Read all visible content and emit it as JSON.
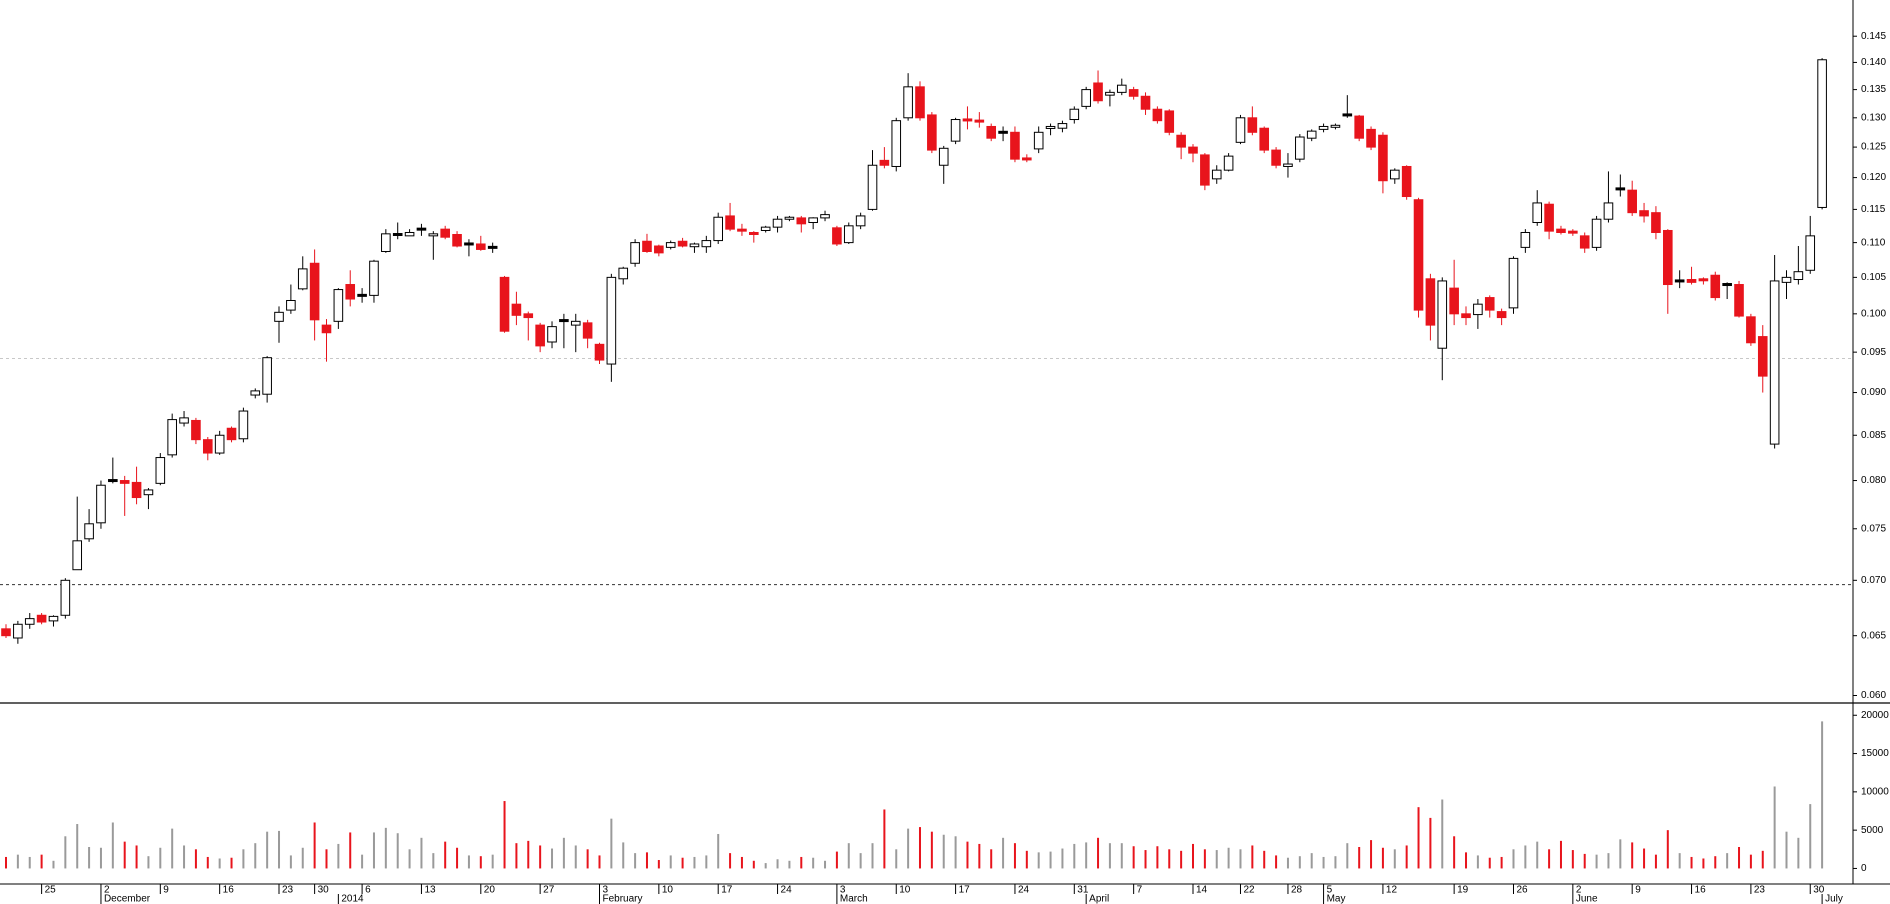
{
  "chart_data": {
    "type": "candlestick",
    "log_scale": true,
    "ylim": [
      0.0594,
      0.1522
    ],
    "yticks": [
      {
        "value": 0.06,
        "label": "0.060"
      },
      0.065,
      {
        "value": 0.07,
        "label": "0.070"
      },
      0.075,
      {
        "value": 0.08,
        "label": "0.080"
      },
      0.085,
      {
        "value": 0.09,
        "label": "0.090"
      },
      0.095,
      {
        "value": 0.1,
        "label": "0.100"
      },
      0.105,
      {
        "value": 0.11,
        "label": "0.110"
      },
      0.115,
      {
        "value": 0.12,
        "label": "0.120"
      },
      0.125,
      {
        "value": 0.13,
        "label": "0.130"
      },
      0.135,
      {
        "value": 0.14,
        "label": "0.140"
      },
      0.145
    ],
    "volume_ylim": [
      -1900,
      21600
    ],
    "volume_yticks": [
      0,
      5000,
      10000,
      15000,
      20000
    ],
    "colors": {
      "up": "#ffffff",
      "down": "#e8141c",
      "flat": "#000000",
      "volume_up": "#9a9a9a"
    },
    "reference_lines": [
      {
        "value": 0.0696,
        "color": "#333333"
      },
      {
        "value": 0.0942,
        "color": "#c8c8c8"
      }
    ],
    "categories": [
      null,
      null,
      null,
      "25",
      null,
      null,
      null,
      null,
      "2",
      null,
      null,
      null,
      null,
      "9",
      null,
      null,
      null,
      null,
      "16",
      null,
      null,
      null,
      null,
      "23",
      null,
      null,
      "30",
      null,
      null,
      null,
      "6",
      null,
      null,
      null,
      null,
      "13",
      null,
      null,
      null,
      null,
      "20",
      null,
      null,
      null,
      null,
      "27",
      null,
      null,
      null,
      null,
      "3",
      null,
      null,
      null,
      null,
      "10",
      null,
      null,
      null,
      null,
      "17",
      null,
      null,
      null,
      null,
      "24",
      null,
      null,
      null,
      null,
      "3",
      null,
      null,
      null,
      null,
      "10",
      null,
      null,
      null,
      null,
      "17",
      null,
      null,
      null,
      null,
      "24",
      null,
      null,
      null,
      null,
      "31",
      null,
      null,
      null,
      null,
      "7",
      null,
      null,
      null,
      null,
      "14",
      null,
      null,
      null,
      "22",
      null,
      null,
      null,
      "28",
      null,
      null,
      "5",
      null,
      null,
      null,
      null,
      "12",
      null,
      null,
      null,
      null,
      null,
      "19",
      null,
      null,
      null,
      null,
      "26",
      null,
      null,
      null,
      null,
      "2",
      null,
      null,
      null,
      null,
      "9",
      null,
      null,
      null,
      null,
      "16",
      null,
      null,
      null,
      null,
      "23",
      null,
      null,
      null,
      null,
      "30",
      null
    ],
    "month_labels": [
      null,
      null,
      null,
      null,
      null,
      null,
      null,
      null,
      "December",
      null,
      null,
      null,
      null,
      null,
      null,
      null,
      null,
      null,
      null,
      null,
      null,
      null,
      null,
      null,
      null,
      null,
      null,
      null,
      "2014",
      null,
      null,
      null,
      null,
      null,
      null,
      null,
      null,
      null,
      null,
      null,
      null,
      null,
      null,
      null,
      null,
      null,
      null,
      null,
      null,
      null,
      "February",
      null,
      null,
      null,
      null,
      null,
      null,
      null,
      null,
      null,
      null,
      null,
      null,
      null,
      null,
      null,
      null,
      null,
      null,
      null,
      "March",
      null,
      null,
      null,
      null,
      null,
      null,
      null,
      null,
      null,
      null,
      null,
      null,
      null,
      null,
      null,
      null,
      null,
      null,
      null,
      null,
      "April",
      null,
      null,
      null,
      null,
      null,
      null,
      null,
      null,
      null,
      null,
      null,
      null,
      null,
      null,
      null,
      null,
      null,
      null,
      null,
      "May",
      null,
      null,
      null,
      null,
      null,
      null,
      null,
      null,
      null,
      null,
      null,
      null,
      null,
      null,
      null,
      null,
      null,
      null,
      null,
      null,
      "June",
      null,
      null,
      null,
      null,
      null,
      null,
      null,
      null,
      null,
      null,
      null,
      null,
      null,
      null,
      null,
      null,
      null,
      null,
      null,
      null,
      "July"
    ],
    "open": [
      0.0656,
      0.0648,
      0.066,
      0.0668,
      0.0663,
      0.0668,
      0.071,
      0.074,
      0.0756,
      0.08,
      0.08,
      0.0798,
      0.0785,
      0.0797,
      0.0828,
      0.0864,
      0.0867,
      0.0845,
      0.083,
      0.0858,
      0.0846,
      0.0897,
      0.0898,
      0.099,
      0.1005,
      0.1034,
      0.107,
      0.0985,
      0.099,
      0.104,
      0.1025,
      0.1025,
      0.1087,
      0.1112,
      0.111,
      0.112,
      0.111,
      0.112,
      0.1112,
      0.1098,
      0.1098,
      0.1093,
      0.105,
      0.1013,
      0.1,
      0.0985,
      0.0963,
      0.0991,
      0.0985,
      0.0988,
      0.096,
      0.0935,
      0.1048,
      0.107,
      0.1102,
      0.1095,
      0.1093,
      0.1102,
      0.1094,
      0.1094,
      0.1103,
      0.114,
      0.112,
      0.1115,
      0.1118,
      0.1123,
      0.1135,
      0.1137,
      0.113,
      0.1137,
      0.1122,
      0.11,
      0.1125,
      0.115,
      0.1228,
      0.1218,
      0.13,
      0.1355,
      0.1305,
      0.122,
      0.126,
      0.1298,
      0.1296,
      0.1285,
      0.1275,
      0.1275,
      0.1232,
      0.1247,
      0.1282,
      0.1282,
      0.1297,
      0.132,
      0.1362,
      0.134,
      0.1345,
      0.135,
      0.1338,
      0.1315,
      0.1312,
      0.127,
      0.125,
      0.1237,
      0.1198,
      0.1212,
      0.1258,
      0.13,
      0.1282,
      0.1245,
      0.1218,
      0.123,
      0.1265,
      0.128,
      0.1285,
      0.1305,
      0.1303,
      0.128,
      0.127,
      0.1198,
      0.1218,
      0.1165,
      0.1048,
      0.0955,
      0.1035,
      0.1,
      0.0999,
      0.1022,
      0.1003,
      0.1008,
      0.1093,
      0.113,
      0.1158,
      0.112,
      0.1117,
      0.111,
      0.1093,
      0.1135,
      0.1182,
      0.118,
      0.1148,
      0.1145,
      0.1118,
      0.1045,
      0.1047,
      0.1048,
      0.1053,
      0.104,
      0.104,
      0.0996,
      0.097,
      0.084,
      0.1043,
      0.1047,
      0.106,
      0.1153
    ],
    "high": [
      0.066,
      0.0663,
      0.067,
      0.067,
      0.0668,
      0.0702,
      0.0783,
      0.077,
      0.08,
      0.0825,
      0.0805,
      0.0815,
      0.0792,
      0.083,
      0.0875,
      0.0878,
      0.087,
      0.0848,
      0.0855,
      0.086,
      0.0882,
      0.0905,
      0.0945,
      0.101,
      0.104,
      0.108,
      0.109,
      0.0993,
      0.1035,
      0.106,
      0.1035,
      0.1075,
      0.112,
      0.113,
      0.112,
      0.1128,
      0.1117,
      0.1125,
      0.1117,
      0.1105,
      0.111,
      0.11,
      0.1052,
      0.103,
      0.1003,
      0.0988,
      0.099,
      0.1,
      0.1,
      0.0992,
      0.0962,
      0.1055,
      0.1065,
      0.1105,
      0.1113,
      0.1097,
      0.1103,
      0.1107,
      0.11,
      0.111,
      0.1145,
      0.116,
      0.1128,
      0.1117,
      0.1125,
      0.114,
      0.114,
      0.114,
      0.1138,
      0.1148,
      0.1125,
      0.113,
      0.1145,
      0.1245,
      0.125,
      0.13,
      0.138,
      0.1365,
      0.131,
      0.1252,
      0.13,
      0.132,
      0.131,
      0.129,
      0.1285,
      0.1285,
      0.1238,
      0.1285,
      0.129,
      0.1295,
      0.132,
      0.1355,
      0.1385,
      0.135,
      0.137,
      0.1355,
      0.1345,
      0.132,
      0.1315,
      0.1275,
      0.1255,
      0.124,
      0.122,
      0.124,
      0.1305,
      0.132,
      0.1285,
      0.125,
      0.124,
      0.1272,
      0.128,
      0.129,
      0.129,
      0.134,
      0.1305,
      0.1285,
      0.1275,
      0.1215,
      0.122,
      0.1168,
      0.1055,
      0.105,
      0.1075,
      0.101,
      0.102,
      0.1025,
      0.1007,
      0.108,
      0.112,
      0.118,
      0.1162,
      0.1125,
      0.112,
      0.1115,
      0.114,
      0.121,
      0.1205,
      0.1195,
      0.116,
      0.1155,
      0.112,
      0.106,
      0.1065,
      0.105,
      0.1058,
      0.1043,
      0.1045,
      0.1,
      0.0985,
      0.1082,
      0.106,
      0.1095,
      0.114,
      0.1408
    ],
    "low": [
      0.0648,
      0.0643,
      0.0656,
      0.066,
      0.0658,
      0.0665,
      0.071,
      0.0737,
      0.075,
      0.0797,
      0.0763,
      0.0775,
      0.077,
      0.0795,
      0.0825,
      0.086,
      0.084,
      0.0822,
      0.0828,
      0.0842,
      0.0842,
      0.0893,
      0.0888,
      0.0962,
      0.1,
      0.1032,
      0.0965,
      0.0938,
      0.098,
      0.101,
      0.1015,
      0.1015,
      0.1085,
      0.1105,
      0.111,
      0.111,
      0.1075,
      0.1105,
      0.1093,
      0.108,
      0.1088,
      0.1085,
      0.0975,
      0.0985,
      0.0965,
      0.095,
      0.0955,
      0.0955,
      0.095,
      0.0955,
      0.0935,
      0.0913,
      0.104,
      0.1065,
      0.1085,
      0.108,
      0.109,
      0.1093,
      0.1085,
      0.1085,
      0.1098,
      0.1117,
      0.111,
      0.11,
      0.1115,
      0.1115,
      0.1132,
      0.1115,
      0.112,
      0.1132,
      0.1095,
      0.1098,
      0.112,
      0.1148,
      0.1215,
      0.121,
      0.1295,
      0.1295,
      0.124,
      0.119,
      0.1255,
      0.128,
      0.1283,
      0.126,
      0.126,
      0.1225,
      0.1225,
      0.124,
      0.127,
      0.1275,
      0.129,
      0.1315,
      0.1325,
      0.132,
      0.134,
      0.1332,
      0.1305,
      0.129,
      0.127,
      0.123,
      0.1225,
      0.118,
      0.119,
      0.121,
      0.1255,
      0.127,
      0.124,
      0.1215,
      0.12,
      0.1225,
      0.126,
      0.1275,
      0.128,
      0.13,
      0.126,
      0.1245,
      0.1175,
      0.119,
      0.1165,
      0.0995,
      0.0965,
      0.0915,
      0.0985,
      0.0985,
      0.098,
      0.0995,
      0.0985,
      0.1,
      0.1085,
      0.1125,
      0.1105,
      0.1112,
      0.111,
      0.1085,
      0.1088,
      0.113,
      0.117,
      0.114,
      0.113,
      0.1105,
      0.1,
      0.1035,
      0.104,
      0.104,
      0.1018,
      0.102,
      0.0995,
      0.0958,
      0.09,
      0.0835,
      0.102,
      0.104,
      0.1055,
      0.115
    ],
    "close": [
      0.065,
      0.066,
      0.0665,
      0.0662,
      0.0667,
      0.07,
      0.0738,
      0.0755,
      0.0795,
      0.08,
      0.0797,
      0.0782,
      0.079,
      0.0825,
      0.0868,
      0.087,
      0.0845,
      0.083,
      0.085,
      0.0845,
      0.0878,
      0.0902,
      0.0943,
      0.1002,
      0.1018,
      0.1062,
      0.0992,
      0.0975,
      0.1033,
      0.102,
      0.1025,
      0.1073,
      0.1113,
      0.1112,
      0.1115,
      0.112,
      0.1113,
      0.1108,
      0.1095,
      0.1098,
      0.109,
      0.1093,
      0.0977,
      0.0998,
      0.0995,
      0.0958,
      0.0983,
      0.0991,
      0.099,
      0.0968,
      0.094,
      0.105,
      0.1063,
      0.11,
      0.1087,
      0.1085,
      0.11,
      0.1095,
      0.1098,
      0.1103,
      0.1138,
      0.112,
      0.1117,
      0.1112,
      0.1123,
      0.1135,
      0.1138,
      0.1128,
      0.1137,
      0.1142,
      0.1098,
      0.1125,
      0.114,
      0.122,
      0.122,
      0.1295,
      0.1355,
      0.13,
      0.1245,
      0.1248,
      0.1297,
      0.1296,
      0.1293,
      0.1265,
      0.1275,
      0.123,
      0.123,
      0.1275,
      0.1285,
      0.129,
      0.1315,
      0.135,
      0.133,
      0.1345,
      0.1358,
      0.1338,
      0.1315,
      0.1295,
      0.1275,
      0.125,
      0.124,
      0.1188,
      0.1212,
      0.1235,
      0.13,
      0.1275,
      0.1245,
      0.122,
      0.1222,
      0.1267,
      0.1277,
      0.1285,
      0.1287,
      0.1305,
      0.1265,
      0.125,
      0.1195,
      0.1212,
      0.117,
      0.1005,
      0.0985,
      0.1045,
      0.1,
      0.0995,
      0.1013,
      0.1005,
      0.0995,
      0.1077,
      0.1115,
      0.116,
      0.1117,
      0.1115,
      0.1115,
      0.1092,
      0.1135,
      0.116,
      0.1182,
      0.1145,
      0.114,
      0.1115,
      0.104,
      0.1045,
      0.1043,
      0.1047,
      0.1022,
      0.104,
      0.0997,
      0.0962,
      0.092,
      0.1045,
      0.105,
      0.1058,
      0.111,
      0.1405
    ],
    "volume": [
      1500,
      1800,
      1500,
      1800,
      1000,
      4200,
      5800,
      2800,
      2700,
      6000,
      3500,
      3000,
      1600,
      2700,
      5200,
      3000,
      2500,
      1500,
      1300,
      1400,
      2500,
      3300,
      4800,
      4900,
      1700,
      2700,
      6000,
      2500,
      3200,
      4700,
      1800,
      4700,
      5300,
      4600,
      2500,
      4000,
      2000,
      3500,
      2700,
      1700,
      1600,
      1800,
      8800,
      3300,
      3600,
      3000,
      2600,
      4000,
      3000,
      2500,
      1700,
      6500,
      3400,
      2000,
      2100,
      1100,
      1700,
      1400,
      1500,
      1700,
      4500,
      2000,
      1500,
      1000,
      700,
      1200,
      1000,
      1500,
      1400,
      1000,
      2200,
      3300,
      2000,
      3300,
      7700,
      2500,
      5200,
      5400,
      4800,
      4400,
      4200,
      3500,
      3200,
      2500,
      4000,
      3300,
      2300,
      2100,
      2200,
      2600,
      3200,
      3400,
      4000,
      3300,
      3300,
      2900,
      2400,
      2900,
      2500,
      2300,
      3200,
      2500,
      2400,
      2700,
      2500,
      3000,
      2300,
      1700,
      1400,
      1600,
      2000,
      1500,
      1600,
      3300,
      2800,
      3700,
      2700,
      2500,
      3000,
      8000,
      6600,
      9000,
      4200,
      2100,
      1700,
      1400,
      1500,
      2500,
      3000,
      3500,
      2500,
      3600,
      2400,
      1900,
      1800,
      2000,
      3800,
      3400,
      2600,
      1800,
      5000,
      2000,
      1500,
      1300,
      1600,
      2000,
      2800,
      1800,
      2300,
      10700,
      4800,
      4000,
      8400,
      19200
    ]
  }
}
